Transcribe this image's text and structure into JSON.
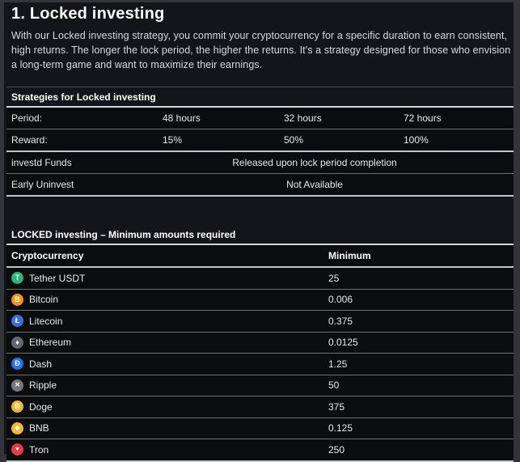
{
  "page": {
    "title": "1. Locked investing",
    "description": "With our Locked investing strategy, you commit your cryptocurrency for a specific duration to earn consistent, high returns. The longer the lock period, the higher the returns. It's a strategy designed for those who envision a long-term game and want to maximize their earnings."
  },
  "strategies_table": {
    "title": "Strategies for Locked investing",
    "rows": {
      "period": {
        "label": "Period:",
        "values": [
          "48 hours",
          "32 hours",
          "72 hours"
        ]
      },
      "reward": {
        "label": "Reward:",
        "values": [
          "15%",
          "50%",
          "100%"
        ]
      },
      "invested_funds": {
        "label": "investd Funds",
        "value": "Released upon lock period completion"
      },
      "early_uninvest": {
        "label": "Early Uninvest",
        "value": "Not Available"
      }
    }
  },
  "minimums_table": {
    "title": "LOCKED investing – Minimum amounts required",
    "columns": {
      "crypto": "Cryptocurrency",
      "minimum": "Minimum"
    },
    "rows": [
      {
        "name": "Tether USDT",
        "icon": "tether-icon",
        "symbol": "T",
        "color": "#2ab57f",
        "symbol_size": "9px",
        "minimum": "25"
      },
      {
        "name": "Bitcoin",
        "icon": "bitcoin-icon",
        "symbol": "B",
        "color": "#f7931a",
        "symbol_size": "9px",
        "minimum": "0.006"
      },
      {
        "name": "Litecoin",
        "icon": "litecoin-icon",
        "symbol": "Ł",
        "color": "#3a6fd8",
        "symbol_size": "9px",
        "minimum": "0.375"
      },
      {
        "name": "Ethereum",
        "icon": "ethereum-icon",
        "symbol": "♦",
        "color": "#62676e",
        "symbol_size": "9px",
        "minimum": "0.0125"
      },
      {
        "name": "Dash",
        "icon": "dash-icon",
        "symbol": "Đ",
        "color": "#2573e8",
        "symbol_size": "9px",
        "minimum": "1.25"
      },
      {
        "name": "Ripple",
        "icon": "ripple-icon",
        "symbol": "✕",
        "color": "#75797f",
        "symbol_size": "8px",
        "minimum": "50"
      },
      {
        "name": "Doge",
        "icon": "doge-icon",
        "symbol": "Ð",
        "color": "#edb82f",
        "symbol_size": "9px",
        "minimum": "375"
      },
      {
        "name": "BNB",
        "icon": "bnb-icon",
        "symbol": "◆",
        "color": "#f3ba2f",
        "symbol_size": "8px",
        "minimum": "0.125"
      },
      {
        "name": "Tron",
        "icon": "tron-icon",
        "symbol": "▼",
        "color": "#e63b46",
        "symbol_size": "7px",
        "minimum": "250"
      }
    ]
  }
}
